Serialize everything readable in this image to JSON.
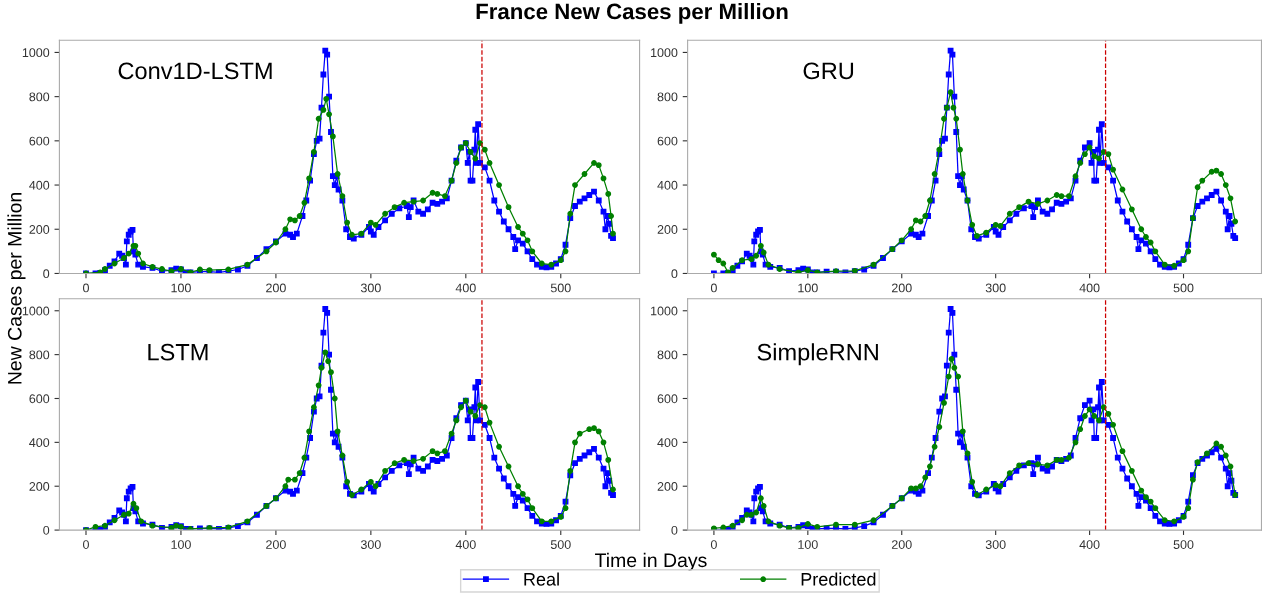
{
  "chart_data": [
    {
      "type": "line",
      "title": "France New Cases per Million",
      "xlabel": "Time in Days",
      "ylabel": "New Cases per Million",
      "legend": "bottom",
      "annotations": [
        "Conv1D-LSTM"
      ],
      "xlim": [
        -28,
        583
      ],
      "xticks": [
        0,
        100,
        200,
        300,
        400,
        500
      ],
      "ylim": [
        0,
        1055
      ],
      "yticks": [
        0,
        200,
        400,
        600,
        800,
        1000
      ],
      "ref_lines": [
        {
          "axis": "x",
          "value": 417,
          "color": "#cc0000",
          "line_style": "dashed"
        }
      ],
      "series": [
        {
          "name": "Real",
          "color": "#0000ff",
          "marker": "square",
          "x": [
            0,
            10,
            15,
            20,
            25,
            30,
            35,
            38,
            40,
            42,
            43,
            45,
            47,
            49,
            50,
            52,
            55,
            60,
            70,
            80,
            90,
            95,
            100,
            105,
            110,
            120,
            130,
            140,
            150,
            160,
            170,
            180,
            190,
            200,
            210,
            215,
            218,
            222,
            228,
            232,
            236,
            240,
            243,
            246,
            248,
            250,
            252,
            254,
            256,
            258,
            260,
            262,
            264,
            266,
            270,
            274,
            278,
            282,
            290,
            298,
            300,
            303,
            308,
            315,
            322,
            330,
            338,
            340,
            342,
            345,
            350,
            355,
            360,
            365,
            370,
            375,
            380,
            385,
            390,
            395,
            400,
            402,
            404,
            405,
            407,
            409,
            410,
            411,
            413,
            415,
            420,
            425,
            430,
            435,
            440,
            445,
            450,
            452,
            455,
            460,
            465,
            470,
            475,
            480,
            485,
            490,
            495,
            500,
            505,
            510,
            515,
            520,
            525,
            530,
            535,
            540,
            545,
            547,
            549,
            551,
            553,
            555
          ],
          "values": [
            0,
            0,
            2,
            15,
            35,
            55,
            90,
            80,
            70,
            40,
            145,
            175,
            190,
            197,
            100,
            85,
            40,
            30,
            25,
            10,
            15,
            22,
            18,
            5,
            5,
            8,
            8,
            5,
            10,
            18,
            35,
            70,
            110,
            145,
            180,
            175,
            165,
            180,
            260,
            330,
            420,
            540,
            600,
            610,
            750,
            900,
            1008,
            990,
            800,
            640,
            440,
            400,
            440,
            380,
            330,
            200,
            165,
            158,
            175,
            210,
            190,
            175,
            210,
            240,
            270,
            295,
            305,
            255,
            300,
            330,
            280,
            270,
            290,
            320,
            315,
            325,
            340,
            420,
            510,
            570,
            590,
            500,
            550,
            420,
            420,
            560,
            650,
            500,
            675,
            500,
            480,
            420,
            330,
            280,
            235,
            200,
            165,
            110,
            150,
            135,
            100,
            65,
            40,
            30,
            28,
            30,
            45,
            65,
            130,
            250,
            305,
            325,
            340,
            355,
            370,
            330,
            280,
            200,
            260,
            225,
            170,
            160
          ]
        },
        {
          "name": "Predicted",
          "color": "#008000",
          "marker": "circle",
          "x": [
            0,
            15,
            20,
            30,
            40,
            45,
            50,
            52,
            55,
            60,
            70,
            80,
            90,
            100,
            110,
            120,
            130,
            150,
            170,
            190,
            200,
            210,
            215,
            220,
            225,
            230,
            235,
            240,
            245,
            250,
            253,
            256,
            260,
            265,
            270,
            275,
            280,
            290,
            300,
            305,
            315,
            325,
            335,
            345,
            355,
            365,
            370,
            378,
            385,
            390,
            395,
            400,
            405,
            410,
            415,
            420,
            425,
            435,
            445,
            455,
            460,
            465,
            470,
            480,
            490,
            500,
            505,
            510,
            515,
            525,
            535,
            540,
            545,
            550,
            553,
            555
          ],
          "values": [
            0,
            5,
            20,
            45,
            70,
            90,
            125,
            125,
            90,
            45,
            30,
            20,
            10,
            20,
            5,
            18,
            15,
            18,
            40,
            100,
            140,
            200,
            245,
            240,
            260,
            320,
            430,
            550,
            700,
            740,
            790,
            720,
            620,
            450,
            350,
            230,
            175,
            180,
            230,
            220,
            270,
            300,
            320,
            325,
            330,
            365,
            360,
            350,
            420,
            500,
            570,
            590,
            550,
            520,
            590,
            560,
            500,
            400,
            300,
            210,
            180,
            150,
            100,
            45,
            40,
            60,
            100,
            270,
            400,
            450,
            500,
            490,
            430,
            360,
            260,
            180
          ]
        }
      ]
    },
    {
      "type": "line",
      "legend": false,
      "annotations": [
        "GRU"
      ],
      "xlim": [
        -28,
        583
      ],
      "xticks": [
        0,
        100,
        200,
        300,
        400,
        500
      ],
      "ylim": [
        0,
        1055
      ],
      "yticks": [
        0,
        200,
        400,
        600,
        800,
        1000
      ],
      "ref_lines": [
        {
          "axis": "x",
          "value": 417,
          "color": "#cc0000",
          "line_style": "dashed"
        }
      ],
      "series": [
        {
          "color": "#0000ff",
          "marker": "square",
          "x": [
            0,
            10,
            15,
            20,
            25,
            30,
            35,
            38,
            40,
            42,
            43,
            45,
            47,
            49,
            50,
            52,
            55,
            60,
            70,
            80,
            90,
            95,
            100,
            105,
            110,
            120,
            130,
            140,
            150,
            160,
            170,
            180,
            190,
            200,
            210,
            215,
            218,
            222,
            228,
            232,
            236,
            240,
            243,
            246,
            248,
            250,
            252,
            254,
            256,
            258,
            260,
            262,
            264,
            266,
            270,
            274,
            278,
            282,
            290,
            298,
            300,
            303,
            308,
            315,
            322,
            330,
            338,
            340,
            342,
            345,
            350,
            355,
            360,
            365,
            370,
            375,
            380,
            385,
            390,
            395,
            400,
            402,
            404,
            405,
            407,
            409,
            410,
            411,
            413,
            415,
            420,
            425,
            430,
            435,
            440,
            445,
            450,
            452,
            455,
            460,
            465,
            470,
            475,
            480,
            485,
            490,
            495,
            500,
            505,
            510,
            515,
            520,
            525,
            530,
            535,
            540,
            545,
            547,
            549,
            551,
            553,
            555
          ],
          "values": [
            0,
            0,
            2,
            15,
            35,
            55,
            90,
            80,
            70,
            40,
            145,
            175,
            190,
            197,
            100,
            85,
            40,
            30,
            25,
            10,
            15,
            22,
            18,
            5,
            5,
            8,
            8,
            5,
            10,
            18,
            35,
            70,
            110,
            145,
            180,
            175,
            165,
            180,
            260,
            330,
            420,
            540,
            600,
            610,
            750,
            900,
            1008,
            990,
            800,
            640,
            440,
            400,
            440,
            380,
            330,
            200,
            165,
            158,
            175,
            210,
            190,
            175,
            210,
            240,
            270,
            295,
            305,
            255,
            300,
            330,
            280,
            270,
            290,
            320,
            315,
            325,
            340,
            420,
            510,
            570,
            590,
            500,
            550,
            420,
            420,
            560,
            650,
            500,
            675,
            500,
            480,
            420,
            330,
            280,
            235,
            200,
            165,
            110,
            150,
            135,
            100,
            65,
            40,
            30,
            28,
            30,
            45,
            65,
            130,
            250,
            305,
            325,
            340,
            355,
            370,
            330,
            280,
            200,
            260,
            225,
            170,
            160
          ]
        },
        {
          "color": "#008000",
          "marker": "circle",
          "x": [
            0,
            5,
            10,
            15,
            20,
            30,
            40,
            45,
            50,
            53,
            58,
            70,
            90,
            100,
            110,
            130,
            150,
            170,
            190,
            200,
            210,
            215,
            220,
            225,
            230,
            235,
            240,
            245,
            248,
            252,
            255,
            258,
            262,
            265,
            270,
            275,
            280,
            290,
            300,
            305,
            315,
            325,
            335,
            345,
            355,
            365,
            370,
            378,
            385,
            390,
            395,
            400,
            405,
            410,
            415,
            420,
            425,
            435,
            445,
            455,
            460,
            465,
            470,
            480,
            490,
            500,
            505,
            510,
            515,
            520,
            530,
            535,
            540,
            545,
            550,
            555
          ],
          "values": [
            85,
            60,
            45,
            5,
            25,
            60,
            65,
            80,
            125,
            95,
            40,
            20,
            5,
            15,
            5,
            10,
            12,
            40,
            110,
            150,
            200,
            240,
            235,
            260,
            330,
            450,
            560,
            700,
            750,
            820,
            750,
            700,
            560,
            450,
            330,
            220,
            170,
            185,
            220,
            215,
            270,
            300,
            325,
            315,
            330,
            355,
            350,
            350,
            440,
            500,
            540,
            570,
            530,
            520,
            550,
            540,
            470,
            380,
            290,
            200,
            165,
            140,
            100,
            40,
            35,
            60,
            100,
            250,
            390,
            420,
            460,
            465,
            450,
            400,
            340,
            235
          ]
        }
      ]
    },
    {
      "type": "line",
      "legend": false,
      "annotations": [
        "LSTM"
      ],
      "xlim": [
        -28,
        583
      ],
      "xticks": [
        0,
        100,
        200,
        300,
        400,
        500
      ],
      "ylim": [
        0,
        1055
      ],
      "yticks": [
        0,
        200,
        400,
        600,
        800,
        1000
      ],
      "ref_lines": [
        {
          "axis": "x",
          "value": 417,
          "color": "#cc0000",
          "line_style": "dashed"
        }
      ],
      "series": [
        {
          "color": "#0000ff",
          "marker": "square",
          "x": [
            0,
            10,
            15,
            20,
            25,
            30,
            35,
            38,
            40,
            42,
            43,
            45,
            47,
            49,
            50,
            52,
            55,
            60,
            70,
            80,
            90,
            95,
            100,
            105,
            110,
            120,
            130,
            140,
            150,
            160,
            170,
            180,
            190,
            200,
            210,
            215,
            218,
            222,
            228,
            232,
            236,
            240,
            243,
            246,
            248,
            250,
            252,
            254,
            256,
            258,
            260,
            262,
            264,
            266,
            270,
            274,
            278,
            282,
            290,
            298,
            300,
            303,
            308,
            315,
            322,
            330,
            338,
            340,
            342,
            345,
            350,
            355,
            360,
            365,
            370,
            375,
            380,
            385,
            390,
            395,
            400,
            402,
            404,
            405,
            407,
            409,
            410,
            411,
            413,
            415,
            420,
            425,
            430,
            435,
            440,
            445,
            450,
            452,
            455,
            460,
            465,
            470,
            475,
            480,
            485,
            490,
            495,
            500,
            505,
            510,
            515,
            520,
            525,
            530,
            535,
            540,
            545,
            547,
            549,
            551,
            553,
            555
          ],
          "values": [
            0,
            0,
            2,
            15,
            35,
            55,
            90,
            80,
            70,
            40,
            145,
            175,
            190,
            197,
            100,
            85,
            40,
            30,
            25,
            10,
            15,
            22,
            18,
            5,
            5,
            8,
            8,
            5,
            10,
            18,
            35,
            70,
            110,
            145,
            180,
            175,
            165,
            180,
            260,
            330,
            420,
            540,
            600,
            610,
            750,
            900,
            1008,
            990,
            800,
            640,
            440,
            400,
            440,
            380,
            330,
            200,
            165,
            158,
            175,
            210,
            190,
            175,
            210,
            240,
            270,
            295,
            305,
            255,
            300,
            330,
            280,
            270,
            290,
            320,
            315,
            325,
            340,
            420,
            510,
            570,
            590,
            500,
            550,
            420,
            420,
            560,
            650,
            500,
            675,
            500,
            480,
            420,
            330,
            280,
            235,
            200,
            165,
            110,
            150,
            135,
            100,
            65,
            40,
            30,
            28,
            30,
            45,
            65,
            130,
            250,
            305,
            325,
            340,
            355,
            370,
            330,
            280,
            200,
            260,
            225,
            170,
            160
          ]
        },
        {
          "color": "#008000",
          "marker": "circle",
          "x": [
            0,
            10,
            20,
            30,
            40,
            45,
            50,
            53,
            58,
            70,
            90,
            95,
            100,
            110,
            130,
            150,
            170,
            190,
            200,
            210,
            213,
            220,
            225,
            230,
            235,
            240,
            245,
            248,
            252,
            255,
            258,
            262,
            265,
            270,
            275,
            280,
            290,
            300,
            305,
            315,
            325,
            335,
            345,
            355,
            365,
            370,
            378,
            385,
            390,
            395,
            400,
            405,
            410,
            415,
            420,
            425,
            435,
            445,
            455,
            460,
            465,
            470,
            480,
            490,
            500,
            505,
            510,
            515,
            520,
            530,
            535,
            540,
            545,
            550,
            555
          ],
          "values": [
            0,
            15,
            20,
            45,
            70,
            75,
            120,
            100,
            40,
            20,
            10,
            20,
            15,
            5,
            10,
            12,
            40,
            110,
            145,
            200,
            230,
            230,
            260,
            330,
            450,
            560,
            660,
            740,
            810,
            770,
            720,
            600,
            450,
            340,
            220,
            160,
            185,
            220,
            200,
            270,
            305,
            320,
            315,
            325,
            360,
            350,
            360,
            440,
            500,
            560,
            590,
            540,
            520,
            570,
            560,
            490,
            380,
            290,
            200,
            165,
            140,
            100,
            40,
            40,
            60,
            100,
            270,
            400,
            440,
            460,
            465,
            450,
            400,
            320,
            185
          ]
        }
      ]
    },
    {
      "type": "line",
      "legend": false,
      "annotations": [
        "SimpleRNN"
      ],
      "xlim": [
        -28,
        583
      ],
      "xticks": [
        0,
        100,
        200,
        300,
        400,
        500
      ],
      "ylim": [
        0,
        1055
      ],
      "yticks": [
        0,
        200,
        400,
        600,
        800,
        1000
      ],
      "ref_lines": [
        {
          "axis": "x",
          "value": 417,
          "color": "#cc0000",
          "line_style": "dashed"
        }
      ],
      "series": [
        {
          "color": "#0000ff",
          "marker": "square",
          "x": [
            0,
            10,
            15,
            20,
            25,
            30,
            35,
            38,
            40,
            42,
            43,
            45,
            47,
            49,
            50,
            52,
            55,
            60,
            70,
            80,
            90,
            95,
            100,
            105,
            110,
            120,
            130,
            140,
            150,
            160,
            170,
            180,
            190,
            200,
            210,
            215,
            218,
            222,
            228,
            232,
            236,
            240,
            243,
            246,
            248,
            250,
            252,
            254,
            256,
            258,
            260,
            262,
            264,
            266,
            270,
            274,
            278,
            282,
            290,
            298,
            300,
            303,
            308,
            315,
            322,
            330,
            338,
            340,
            342,
            345,
            350,
            355,
            360,
            365,
            370,
            375,
            380,
            385,
            390,
            395,
            400,
            402,
            404,
            405,
            407,
            409,
            410,
            411,
            413,
            415,
            420,
            425,
            430,
            435,
            440,
            445,
            450,
            452,
            455,
            460,
            465,
            470,
            475,
            480,
            485,
            490,
            495,
            500,
            505,
            510,
            515,
            520,
            525,
            530,
            535,
            540,
            545,
            547,
            549,
            551,
            553,
            555
          ],
          "values": [
            0,
            0,
            2,
            15,
            35,
            55,
            90,
            80,
            70,
            40,
            145,
            175,
            190,
            197,
            100,
            85,
            40,
            30,
            25,
            10,
            15,
            22,
            18,
            5,
            5,
            8,
            8,
            5,
            10,
            18,
            35,
            70,
            110,
            145,
            180,
            175,
            165,
            180,
            260,
            330,
            420,
            540,
            600,
            610,
            750,
            900,
            1008,
            990,
            800,
            640,
            440,
            400,
            440,
            380,
            330,
            200,
            165,
            158,
            175,
            210,
            190,
            175,
            210,
            240,
            270,
            295,
            305,
            255,
            300,
            330,
            280,
            270,
            290,
            320,
            315,
            325,
            340,
            420,
            510,
            570,
            590,
            500,
            550,
            420,
            420,
            560,
            650,
            500,
            675,
            500,
            480,
            420,
            330,
            280,
            235,
            200,
            165,
            110,
            150,
            135,
            100,
            65,
            40,
            30,
            28,
            30,
            45,
            65,
            130,
            250,
            305,
            325,
            340,
            355,
            370,
            330,
            280,
            200,
            260,
            225,
            170,
            160
          ]
        },
        {
          "color": "#008000",
          "marker": "circle",
          "x": [
            0,
            10,
            20,
            30,
            35,
            40,
            45,
            50,
            53,
            58,
            70,
            80,
            90,
            100,
            110,
            130,
            150,
            170,
            190,
            200,
            210,
            215,
            220,
            225,
            230,
            235,
            240,
            245,
            250,
            253,
            256,
            260,
            265,
            270,
            275,
            280,
            290,
            300,
            305,
            315,
            325,
            335,
            345,
            355,
            365,
            370,
            378,
            385,
            390,
            395,
            400,
            405,
            410,
            415,
            420,
            425,
            435,
            445,
            455,
            460,
            465,
            470,
            480,
            490,
            500,
            505,
            510,
            515,
            525,
            535,
            540,
            545,
            550,
            555
          ],
          "values": [
            8,
            12,
            20,
            45,
            70,
            70,
            80,
            145,
            110,
            40,
            20,
            10,
            10,
            28,
            15,
            25,
            25,
            45,
            110,
            145,
            190,
            190,
            200,
            240,
            290,
            380,
            470,
            580,
            700,
            780,
            740,
            700,
            450,
            350,
            220,
            160,
            185,
            205,
            200,
            260,
            295,
            305,
            300,
            295,
            320,
            320,
            330,
            400,
            460,
            520,
            550,
            520,
            500,
            560,
            530,
            480,
            360,
            270,
            180,
            150,
            130,
            100,
            45,
            40,
            60,
            100,
            230,
            310,
            350,
            395,
            380,
            340,
            290,
            160
          ]
        }
      ]
    }
  ]
}
